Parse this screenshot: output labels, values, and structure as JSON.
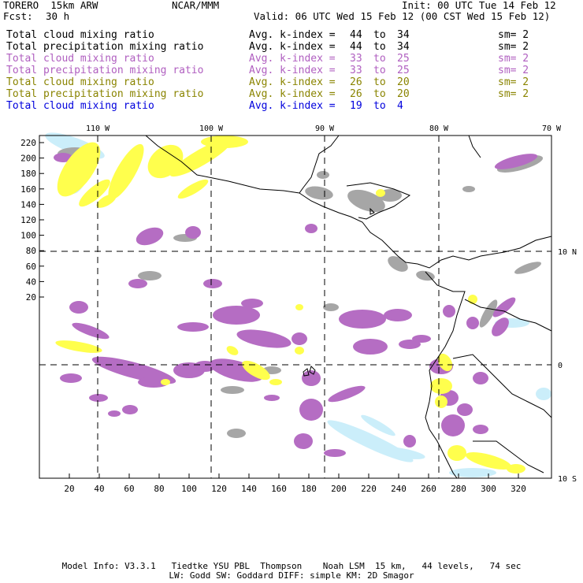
{
  "header": {
    "model_name": "TORERO  15km ARW",
    "institution": "NCAR/MMM",
    "init": "Init: 00 UTC Tue 14 Feb 12",
    "fcst_label": "Fcst:",
    "fcst_value": "30 h",
    "valid": "Valid: 06 UTC Wed 15 Feb 12 (00 CST Wed 15 Feb 12)"
  },
  "legend": [
    {
      "field": "Total cloud mixing ratio",
      "index_label": "Avg. k-index =",
      "from": "44",
      "to_word": "to",
      "to": "34",
      "sm": "sm= 2",
      "color": "#000000"
    },
    {
      "field": "Total precipitation mixing ratio",
      "index_label": "Avg. k-index =",
      "from": "44",
      "to_word": "to",
      "to": "34",
      "sm": "sm= 2",
      "color": "#000000"
    },
    {
      "field": "Total cloud mixing ratio",
      "index_label": "Avg. k-index =",
      "from": "33",
      "to_word": "to",
      "to": "25",
      "sm": "sm= 2",
      "color": "#b05fc0"
    },
    {
      "field": "Total precipitation mixing ratio",
      "index_label": "Avg. k-index =",
      "from": "33",
      "to_word": "to",
      "to": "25",
      "sm": "sm= 2",
      "color": "#b05fc0"
    },
    {
      "field": "Total cloud mixing ratio",
      "index_label": "Avg. k-index =",
      "from": "26",
      "to_word": "to",
      "to": "20",
      "sm": "sm= 2",
      "color": "#8a8400"
    },
    {
      "field": "Total precipitation mixing ratio",
      "index_label": "Avg. k-index =",
      "from": "26",
      "to_word": "to",
      "to": "20",
      "sm": "sm= 2",
      "color": "#8a8400"
    },
    {
      "field": "Total cloud mixing ratio",
      "index_label": "Avg. k-index =",
      "from": "19",
      "to_word": "to",
      "to": "4",
      "sm": "",
      "color": "#0000dd"
    }
  ],
  "map": {
    "top_lon_labels": [
      "110 W",
      "100 W",
      "90 W",
      "80 W",
      "70 W"
    ],
    "right_lat_labels": [
      "10 N",
      "0",
      "10 S"
    ],
    "y_ticks": [
      "220",
      "200",
      "180",
      "160",
      "140",
      "120",
      "100",
      "80",
      "60",
      "40",
      "20"
    ],
    "x_ticks": [
      "20",
      "40",
      "60",
      "80",
      "100",
      "120",
      "140",
      "160",
      "180",
      "200",
      "220",
      "240",
      "260",
      "280",
      "300",
      "320"
    ],
    "colors": {
      "gray": "#a6a6a6",
      "purple": "#b56dc3",
      "yellow": "#ffff4d",
      "lightblue": "#cbeefa",
      "coast": "#000000"
    }
  },
  "footer": {
    "line1": "Model Info: V3.3.1   Tiedtke YSU PBL  Thompson    Noah LSM  15 km,   44 levels,   74 sec",
    "line2": "LW: Godd SW: Goddard DIFF: simple KM: 2D Smagor"
  }
}
